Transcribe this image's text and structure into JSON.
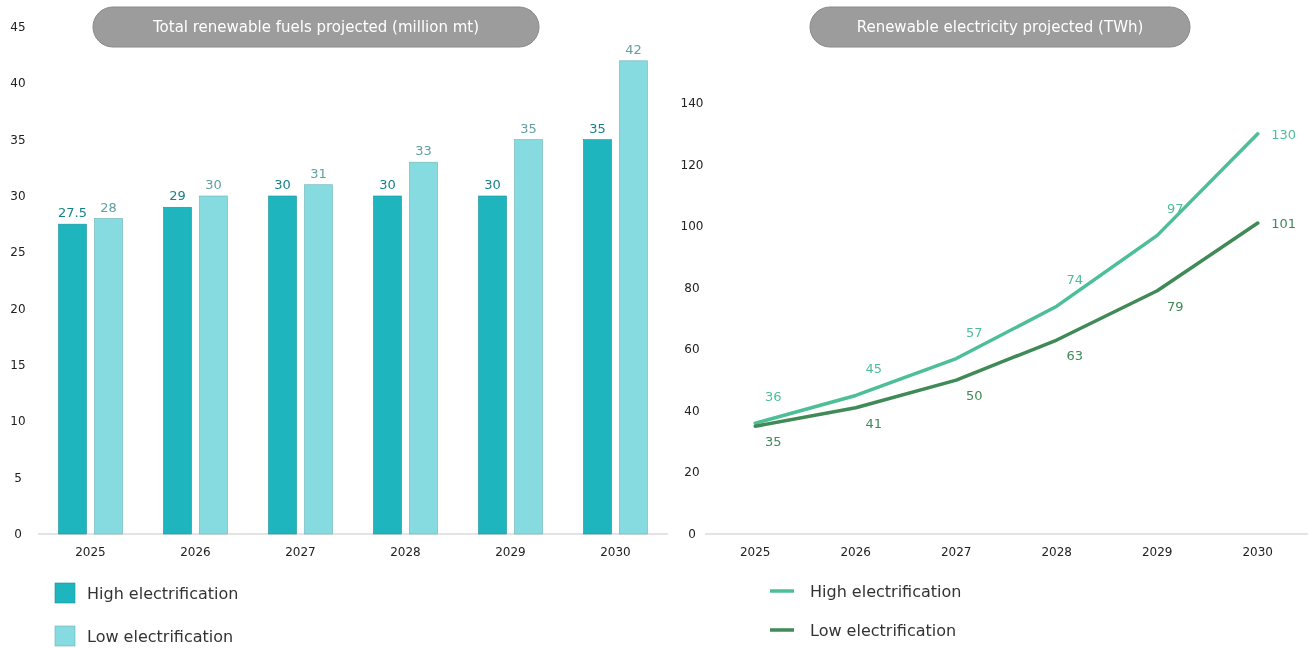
{
  "chart_data": [
    {
      "type": "bar",
      "title": "Total renewable fuels projected (million mt)",
      "categories": [
        "2025",
        "2026",
        "2027",
        "2028",
        "2029",
        "2030"
      ],
      "series": [
        {
          "name": "High electrification",
          "color": "#1fb5bf",
          "values": [
            27.5,
            29,
            30,
            30,
            30,
            35
          ]
        },
        {
          "name": "Low electrification",
          "color": "#86dbe1",
          "values": [
            28,
            30,
            31,
            33,
            35,
            42
          ]
        }
      ],
      "ylim": [
        0,
        45
      ],
      "yticks": [
        0,
        5,
        10,
        15,
        20,
        25,
        30,
        35,
        40,
        45
      ],
      "data_labels": true,
      "legend": "bottom left",
      "grid": false
    },
    {
      "type": "line",
      "title": "Renewable electricity projected (TWh)",
      "categories": [
        "2025",
        "2026",
        "2027",
        "2028",
        "2029",
        "2030"
      ],
      "series": [
        {
          "name": "High electrification",
          "color": "#4dbf97",
          "values": [
            36,
            45,
            57,
            74,
            97,
            130
          ]
        },
        {
          "name": "Low electrification",
          "color": "#3f8a56",
          "values": [
            35,
            41,
            50,
            63,
            79,
            101
          ]
        }
      ],
      "ylim": [
        0,
        140
      ],
      "yticks": [
        0,
        20,
        40,
        60,
        80,
        100,
        120,
        140
      ],
      "data_labels": true,
      "legend": "bottom left",
      "grid": false
    }
  ]
}
